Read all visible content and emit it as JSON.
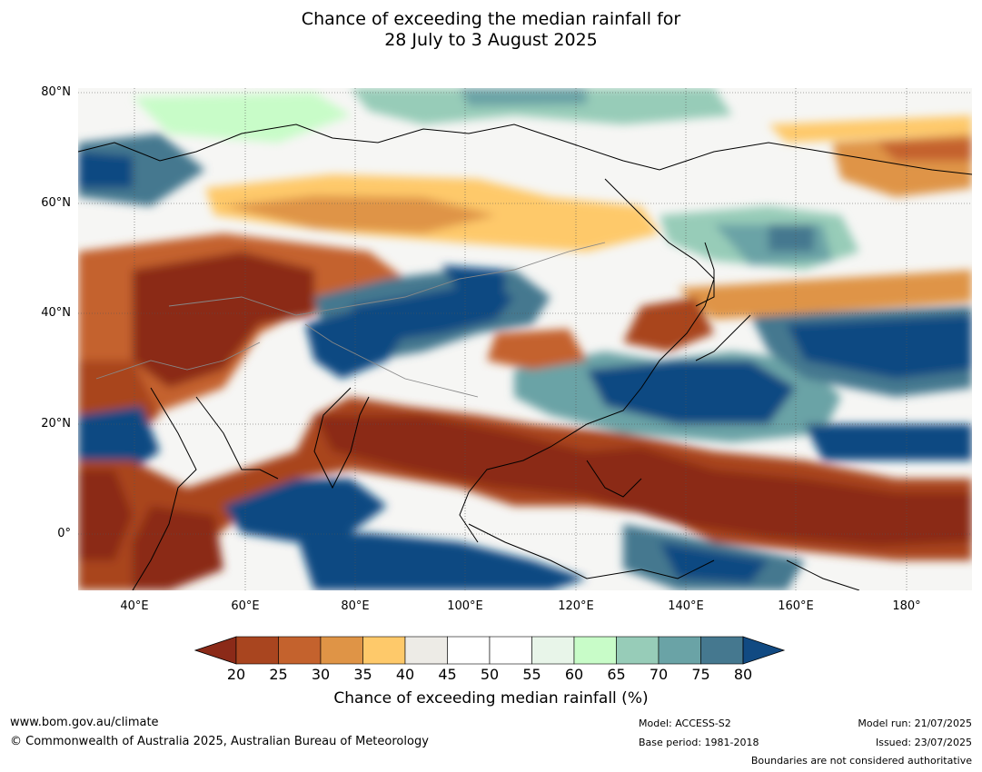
{
  "title": {
    "line1": "Chance of exceeding the median rainfall for",
    "line2": "28 July to 3 August 2025"
  },
  "lat_labels": [
    "80°N",
    "60°N",
    "40°N",
    "20°N",
    "0°"
  ],
  "lon_labels": [
    "40°E",
    "60°E",
    "80°E",
    "100°E",
    "120°E",
    "140°E",
    "160°E",
    "180°"
  ],
  "colorbar": {
    "ticks": [
      "20",
      "25",
      "30",
      "35",
      "40",
      "45",
      "50",
      "55",
      "60",
      "65",
      "70",
      "75",
      "80"
    ],
    "colors": [
      "#8b2a18",
      "#a9451f",
      "#c4622d",
      "#df9446",
      "#fec96a",
      "#edebe6",
      "#ffffff",
      "#ffffff",
      "#e8f5e9",
      "#c8fcc8",
      "#97ccb8",
      "#6aa3a6",
      "#45788f",
      "#114a82"
    ],
    "title": "Chance of exceeding median rainfall (%)"
  },
  "footer": {
    "website": "www.bom.gov.au/climate",
    "copyright": "© Commonwealth of Australia 2025, Australian Bureau of Meteorology",
    "model": "Model: ACCESS-S2",
    "base_period": "Base period: 1981-2018",
    "model_run": "Model run: 21/07/2025",
    "issued": "Issued: 23/07/2025",
    "disclaimer": "Boundaries are not considered authoritative"
  }
}
